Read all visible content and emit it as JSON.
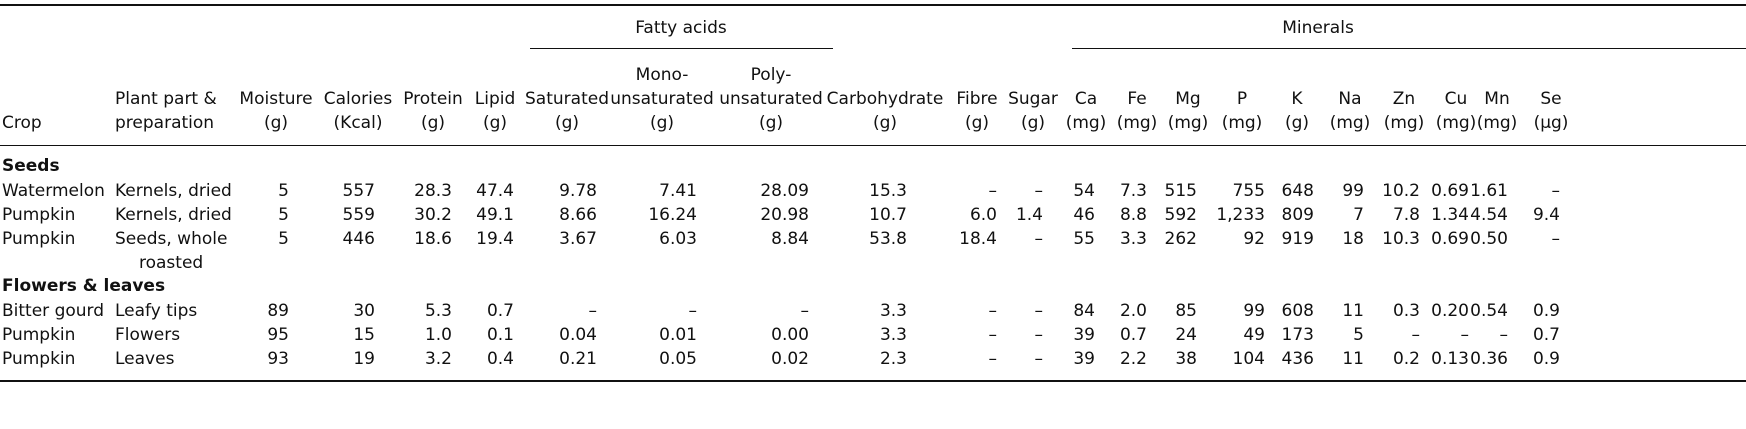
{
  "table": {
    "groups": {
      "fatty_acids": "Fatty acids",
      "minerals": "Minerals"
    },
    "headers": {
      "crop": [
        "Crop"
      ],
      "part": [
        "Plant part &",
        "preparation"
      ],
      "moisture": [
        "Moisture",
        "(g)"
      ],
      "calories": [
        "Calories",
        "(Kcal)"
      ],
      "protein": [
        "Protein",
        "(g)"
      ],
      "lipid": [
        "Lipid",
        "(g)"
      ],
      "saturated": [
        "Saturated",
        "(g)"
      ],
      "mono": [
        "Mono-",
        "unsaturated",
        "(g)"
      ],
      "poly": [
        "Poly-",
        "unsaturated",
        "(g)"
      ],
      "carb": [
        "Carbohydrate",
        "(g)"
      ],
      "fibre": [
        "Fibre",
        "(g)"
      ],
      "sugar": [
        "Sugar",
        "(g)"
      ],
      "ca": [
        "Ca",
        "(mg)"
      ],
      "fe": [
        "Fe",
        "(mg)"
      ],
      "mg": [
        "Mg",
        "(mg)"
      ],
      "p": [
        "P",
        "(mg)"
      ],
      "k": [
        "K",
        "(g)"
      ],
      "na": [
        "Na",
        "(mg)"
      ],
      "zn": [
        "Zn",
        "(mg)"
      ],
      "cu": [
        "Cu",
        "(mg)"
      ],
      "mn": [
        "Mn",
        "(mg)"
      ],
      "se": [
        "Se",
        "(µg)"
      ]
    },
    "sections": [
      {
        "title": "Seeds",
        "rows": [
          {
            "crop": "Watermelon",
            "part": [
              "Kernels, dried"
            ],
            "moisture": "5",
            "calories": "557",
            "protein": "28.3",
            "lipid": "47.4",
            "saturated": "9.78",
            "mono": "7.41",
            "poly": "28.09",
            "carb": "15.3",
            "fibre": "–",
            "sugar": "–",
            "ca": "54",
            "fe": "7.3",
            "mg": "515",
            "p": "755",
            "k": "648",
            "na": "99",
            "zn": "10.2",
            "cu": "0.69",
            "mn": "1.61",
            "se": "–"
          },
          {
            "crop": "Pumpkin",
            "part": [
              "Kernels, dried"
            ],
            "moisture": "5",
            "calories": "559",
            "protein": "30.2",
            "lipid": "49.1",
            "saturated": "8.66",
            "mono": "16.24",
            "poly": "20.98",
            "carb": "10.7",
            "fibre": "6.0",
            "sugar": "1.4",
            "ca": "46",
            "fe": "8.8",
            "mg": "592",
            "p": "1,233",
            "k": "809",
            "na": "7",
            "zn": "7.8",
            "cu": "1.34",
            "mn": "4.54",
            "se": "9.4"
          },
          {
            "crop": "Pumpkin",
            "part": [
              "Seeds, whole",
              "roasted"
            ],
            "moisture": "5",
            "calories": "446",
            "protein": "18.6",
            "lipid": "19.4",
            "saturated": "3.67",
            "mono": "6.03",
            "poly": "8.84",
            "carb": "53.8",
            "fibre": "18.4",
            "sugar": "–",
            "ca": "55",
            "fe": "3.3",
            "mg": "262",
            "p": "92",
            "k": "919",
            "na": "18",
            "zn": "10.3",
            "cu": "0.69",
            "mn": "0.50",
            "se": "–"
          }
        ]
      },
      {
        "title": "Flowers & leaves",
        "rows": [
          {
            "crop": "Bitter gourd",
            "part": [
              "Leafy tips"
            ],
            "moisture": "89",
            "calories": "30",
            "protein": "5.3",
            "lipid": "0.7",
            "saturated": "–",
            "mono": "–",
            "poly": "–",
            "carb": "3.3",
            "fibre": "–",
            "sugar": "–",
            "ca": "84",
            "fe": "2.0",
            "mg": "85",
            "p": "99",
            "k": "608",
            "na": "11",
            "zn": "0.3",
            "cu": "0.20",
            "mn": "0.54",
            "se": "0.9"
          },
          {
            "crop": "Pumpkin",
            "part": [
              "Flowers"
            ],
            "moisture": "95",
            "calories": "15",
            "protein": "1.0",
            "lipid": "0.1",
            "saturated": "0.04",
            "mono": "0.01",
            "poly": "0.00",
            "carb": "3.3",
            "fibre": "–",
            "sugar": "–",
            "ca": "39",
            "fe": "0.7",
            "mg": "24",
            "p": "49",
            "k": "173",
            "na": "5",
            "zn": "–",
            "cu": "–",
            "mn": "–",
            "se": "0.7"
          },
          {
            "crop": "Pumpkin",
            "part": [
              "Leaves"
            ],
            "moisture": "93",
            "calories": "19",
            "protein": "3.2",
            "lipid": "0.4",
            "saturated": "0.21",
            "mono": "0.05",
            "poly": "0.02",
            "carb": "2.3",
            "fibre": "–",
            "sugar": "–",
            "ca": "39",
            "fe": "2.2",
            "mg": "38",
            "p": "104",
            "k": "436",
            "na": "11",
            "zn": "0.2",
            "cu": "0.13",
            "mn": "0.36",
            "se": "0.9"
          }
        ]
      }
    ]
  }
}
